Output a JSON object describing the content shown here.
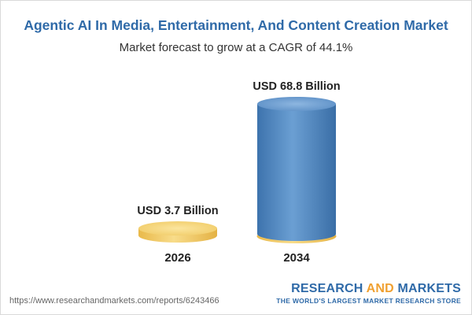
{
  "header": {
    "title": "Agentic AI In Media, Entertainment, And Content Creation Market",
    "subtitle": "Market forecast to grow at a CAGR of 44.1%"
  },
  "chart_data": {
    "type": "bar",
    "title": "Agentic AI In Media, Entertainment, And Content Creation Market",
    "subtitle": "Market forecast to grow at a CAGR of 44.1%",
    "categories": [
      "2026",
      "2034"
    ],
    "values": [
      3.7,
      68.8
    ],
    "data_labels": [
      "USD 3.7 Billion",
      "USD 68.8 Billion"
    ],
    "unit": "USD Billion",
    "bar_colors": [
      "#f3cf6e",
      "#4f86bf"
    ],
    "grid": false,
    "legend": "none"
  },
  "footer": {
    "url": "https://www.researchandmarkets.com/reports/6243466",
    "brand_part1": "RESEARCH ",
    "brand_part2": "AND",
    "brand_part3": " MARKETS",
    "tagline": "THE WORLD'S LARGEST MARKET RESEARCH STORE"
  },
  "colors": {
    "accent": "#2f6aa8",
    "brand_orange": "#f0a030"
  }
}
